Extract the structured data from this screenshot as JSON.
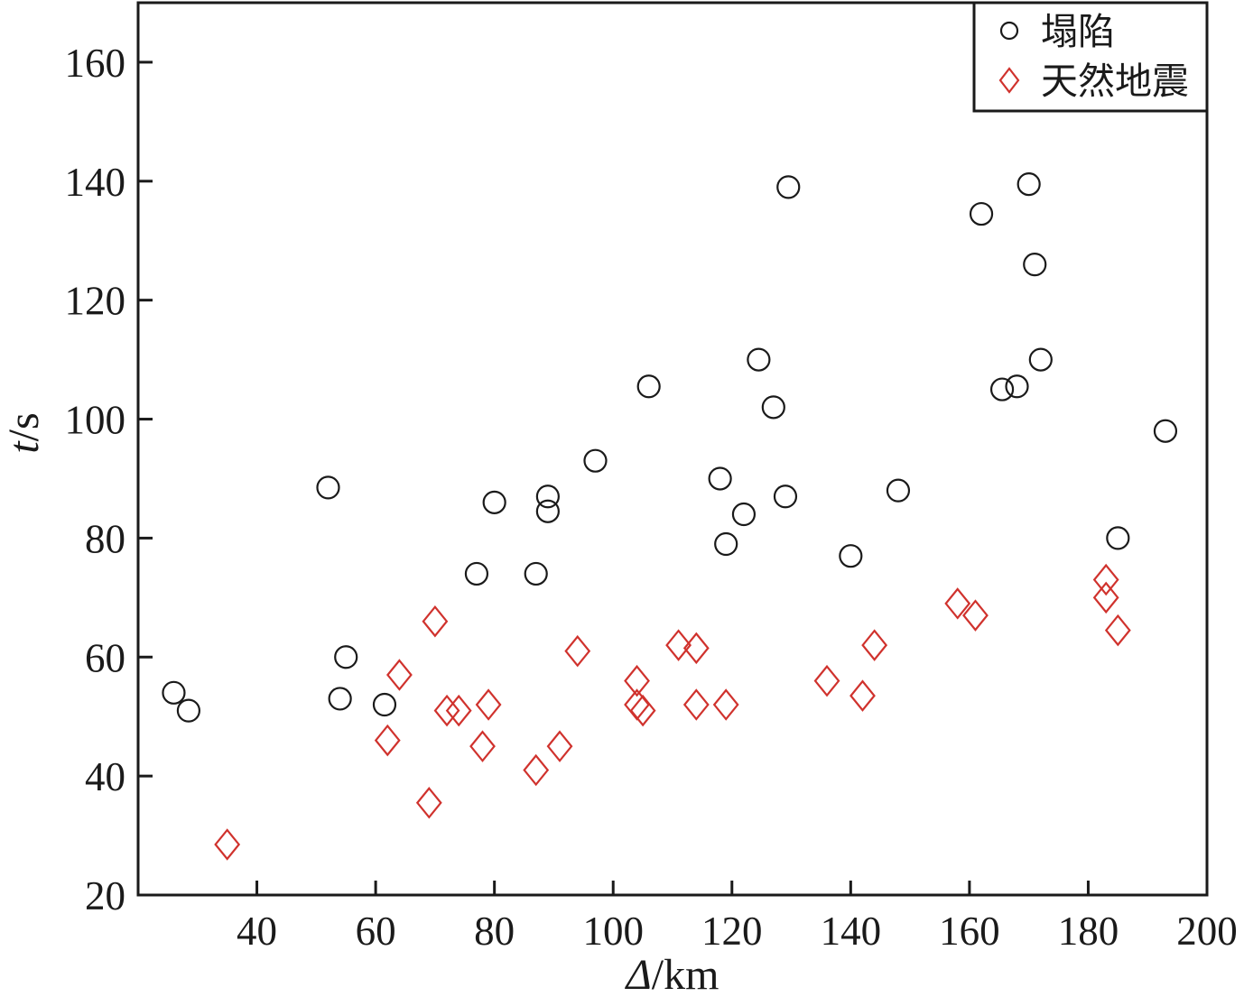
{
  "chart_data": {
    "type": "scatter",
    "title": "",
    "xlabel_italic": "Δ",
    "xlabel_unit": "/km",
    "ylabel_italic": "t",
    "ylabel_unit": "/s",
    "xlim": [
      20,
      200
    ],
    "ylim": [
      20,
      170
    ],
    "x_ticks": [
      40,
      60,
      80,
      100,
      120,
      140,
      160,
      180,
      200
    ],
    "y_ticks": [
      20,
      40,
      60,
      80,
      100,
      120,
      140,
      160
    ],
    "grid": false,
    "legend_position": "top-right",
    "series": [
      {
        "name": "塌陷",
        "marker": "circle",
        "color": "#1a1a1a",
        "points": [
          [
            26,
            54
          ],
          [
            28.5,
            51
          ],
          [
            52,
            88.5
          ],
          [
            54,
            53
          ],
          [
            55,
            60
          ],
          [
            61.5,
            52
          ],
          [
            77,
            74
          ],
          [
            80,
            86
          ],
          [
            87,
            74
          ],
          [
            89,
            87
          ],
          [
            89,
            84.5
          ],
          [
            97,
            93
          ],
          [
            106,
            105.5
          ],
          [
            118,
            90
          ],
          [
            119,
            79
          ],
          [
            122,
            84
          ],
          [
            124.5,
            110
          ],
          [
            127,
            102
          ],
          [
            129,
            87
          ],
          [
            129.5,
            139
          ],
          [
            140,
            77
          ],
          [
            148,
            88
          ],
          [
            162,
            134.5
          ],
          [
            165.5,
            105
          ],
          [
            168,
            105.5
          ],
          [
            170,
            139.5
          ],
          [
            171,
            126
          ],
          [
            172,
            110
          ],
          [
            185,
            80
          ],
          [
            193,
            98
          ]
        ]
      },
      {
        "name": "天然地震",
        "marker": "diamond",
        "color": "#d0322d",
        "points": [
          [
            35,
            28.5
          ],
          [
            62,
            46
          ],
          [
            64,
            57
          ],
          [
            69,
            35.5
          ],
          [
            70,
            66
          ],
          [
            72,
            51
          ],
          [
            74,
            51
          ],
          [
            78,
            45
          ],
          [
            79,
            52
          ],
          [
            87,
            41
          ],
          [
            91,
            45
          ],
          [
            94,
            61
          ],
          [
            104,
            56
          ],
          [
            104,
            52
          ],
          [
            105,
            51
          ],
          [
            111,
            62
          ],
          [
            114,
            61.5
          ],
          [
            114,
            52
          ],
          [
            119,
            52
          ],
          [
            136,
            56
          ],
          [
            142,
            53.5
          ],
          [
            144,
            62
          ],
          [
            158,
            69
          ],
          [
            161,
            67
          ],
          [
            183,
            73
          ],
          [
            183,
            70
          ],
          [
            185,
            64.5
          ]
        ]
      }
    ]
  }
}
